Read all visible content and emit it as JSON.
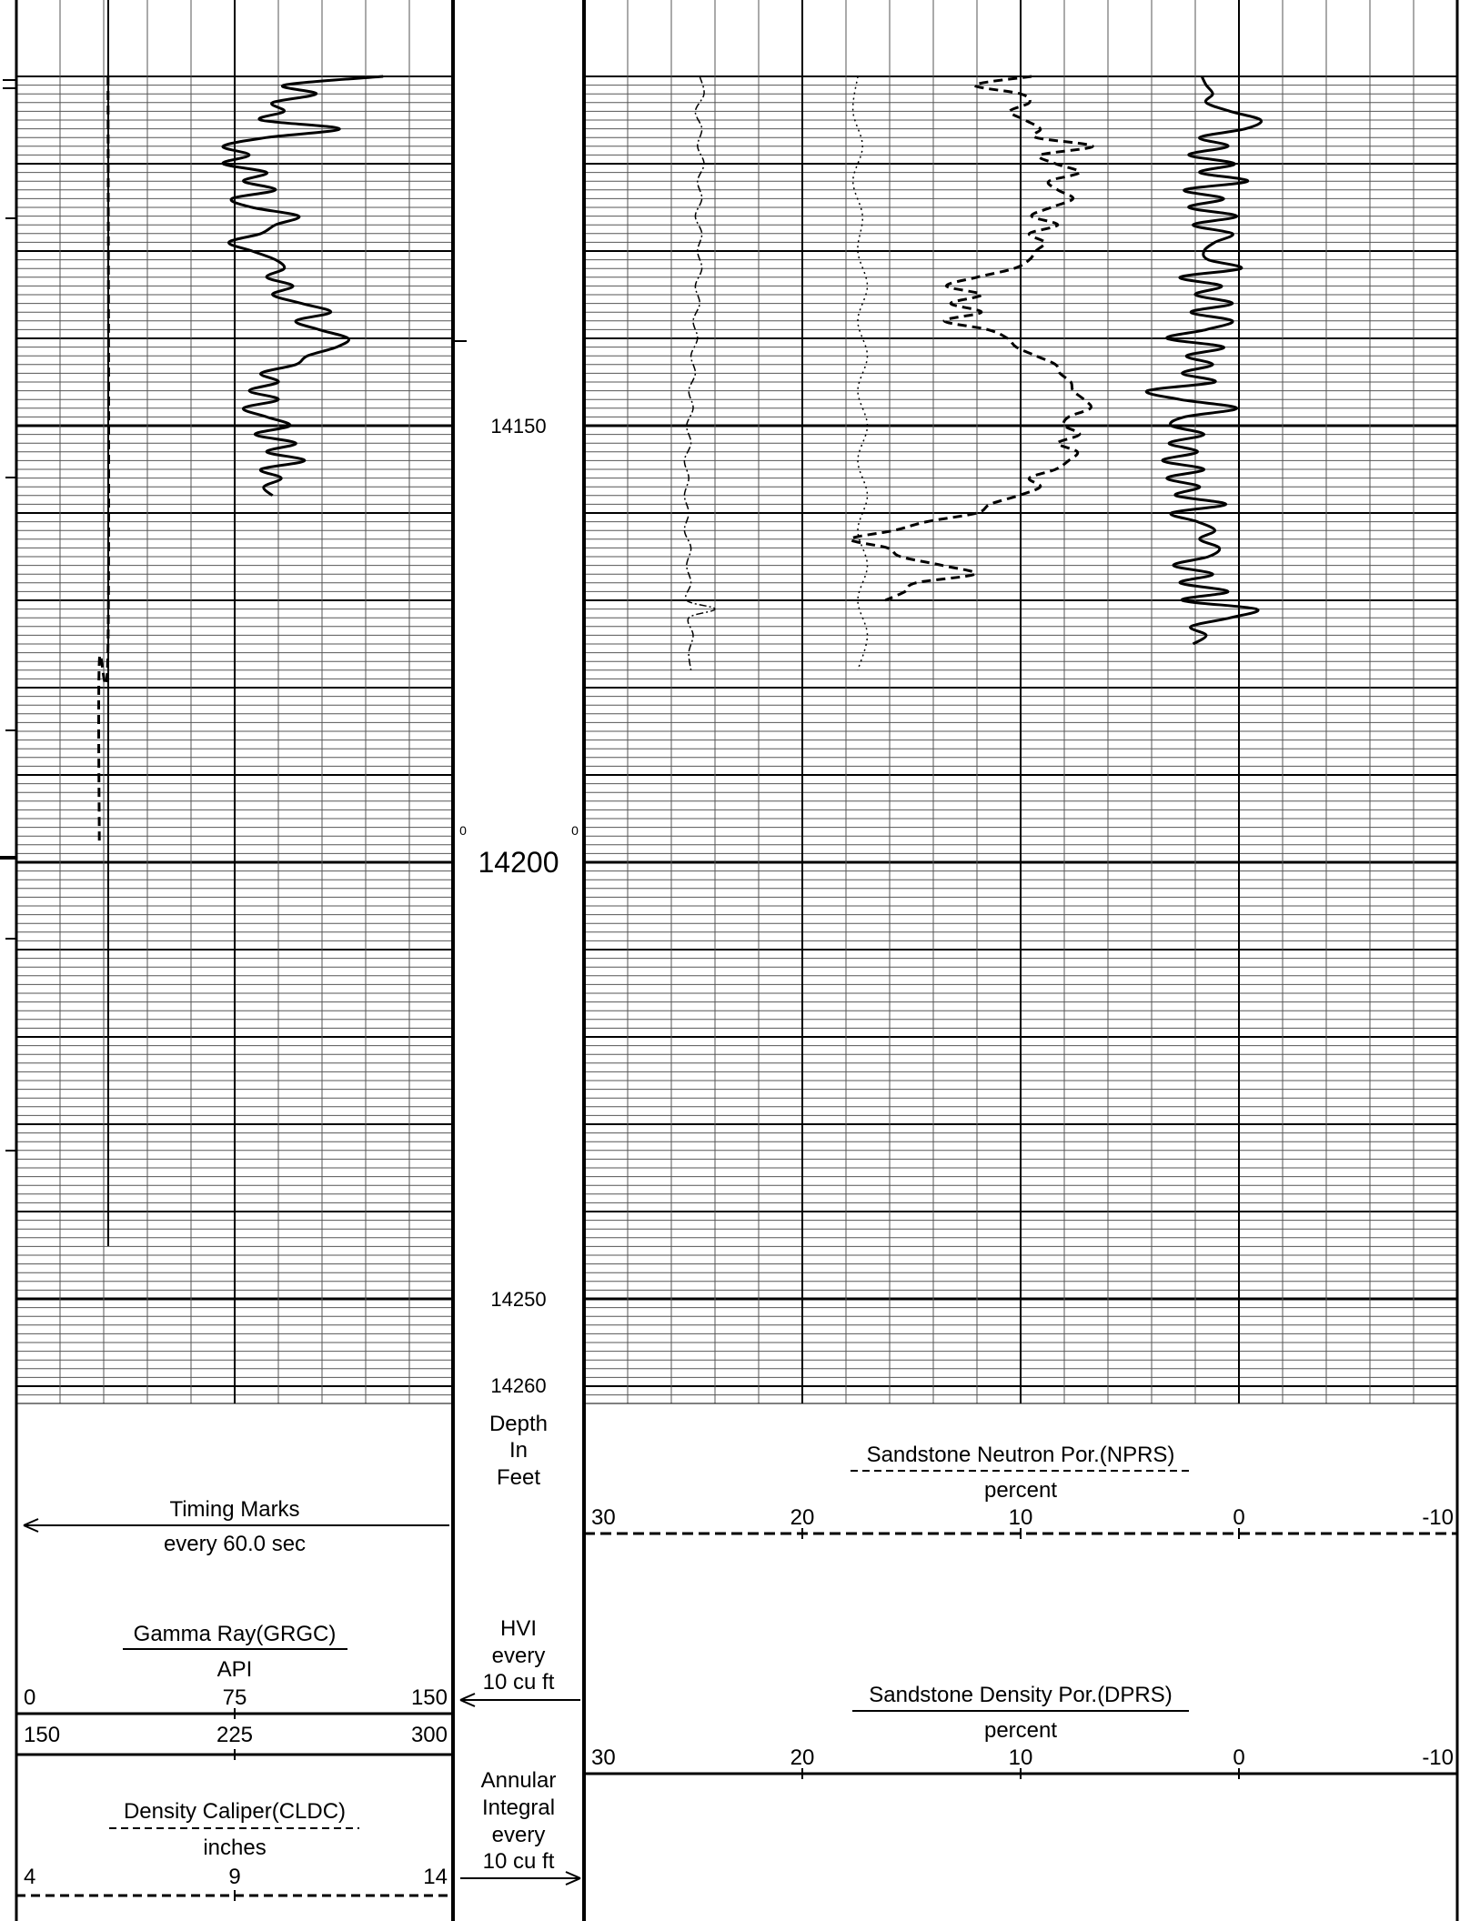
{
  "depth_labels": {
    "d14150": "14150",
    "d14200": "14200",
    "d14250": "14250",
    "d14260": "14260",
    "small_zero_left": "0",
    "small_zero_right": "0"
  },
  "depth_header": {
    "line1": "Depth",
    "line2": "In",
    "line3": "Feet"
  },
  "hvi": {
    "line1": "HVI",
    "line2": "every",
    "line3": "10 cu ft"
  },
  "annular": {
    "line1": "Annular",
    "line2": "Integral",
    "line3": "every",
    "line4": "10 cu ft"
  },
  "timing": {
    "title": "Timing Marks",
    "subtitle": "every 60.0 sec"
  },
  "gamma": {
    "title": "Gamma Ray(GRGC)",
    "unit": "API",
    "scale1": [
      "0",
      "75",
      "150"
    ],
    "scale2": [
      "150",
      "225",
      "300"
    ]
  },
  "caliper": {
    "title": "Density Caliper(CLDC)",
    "unit": "inches",
    "scale": [
      "4",
      "9",
      "14"
    ]
  },
  "neutron": {
    "title": "Sandstone Neutron Por.(NPRS)",
    "unit": "percent",
    "scale": [
      "30",
      "20",
      "10",
      "0",
      "-10"
    ]
  },
  "density": {
    "title": "Sandstone Density Por.(DPRS)",
    "unit": "percent",
    "scale": [
      "30",
      "20",
      "10",
      "0",
      "-10"
    ]
  },
  "chart_data": {
    "type": "line",
    "depth_unit": "ft",
    "depth_range": [
      14110,
      14270
    ],
    "tracks": [
      {
        "name": "Gamma Ray(GRGC)",
        "unit": "API",
        "xlim": [
          0,
          150
        ],
        "style": "solid",
        "points": [
          [
            14110,
            126
          ],
          [
            14111,
            92
          ],
          [
            14112,
            103
          ],
          [
            14113,
            88
          ],
          [
            14114,
            92
          ],
          [
            14115,
            84
          ],
          [
            14116,
            111
          ],
          [
            14117,
            86
          ],
          [
            14118,
            71
          ],
          [
            14119,
            80
          ],
          [
            14120,
            71
          ],
          [
            14121,
            86
          ],
          [
            14122,
            78
          ],
          [
            14123,
            89
          ],
          [
            14124,
            74
          ],
          [
            14125,
            81
          ],
          [
            14126,
            97
          ],
          [
            14127,
            89
          ],
          [
            14128,
            84
          ],
          [
            14129,
            73
          ],
          [
            14130,
            81
          ],
          [
            14131,
            89
          ],
          [
            14132,
            92
          ],
          [
            14133,
            86
          ],
          [
            14134,
            95
          ],
          [
            14135,
            88
          ],
          [
            14136,
            98
          ],
          [
            14137,
            108
          ],
          [
            14138,
            96
          ],
          [
            14139,
            104
          ],
          [
            14140,
            114
          ],
          [
            14141,
            110
          ],
          [
            14142,
            100
          ],
          [
            14143,
            96
          ],
          [
            14144,
            84
          ],
          [
            14145,
            90
          ],
          [
            14146,
            80
          ],
          [
            14147,
            90
          ],
          [
            14148,
            78
          ],
          [
            14149,
            86
          ],
          [
            14150,
            94
          ],
          [
            14151,
            82
          ],
          [
            14152,
            96
          ],
          [
            14153,
            86
          ],
          [
            14154,
            99
          ],
          [
            14155,
            84
          ],
          [
            14156,
            91
          ],
          [
            14157,
            85
          ],
          [
            14158,
            88
          ]
        ]
      },
      {
        "name": "Density Caliper(CLDC)",
        "unit": "inches",
        "xlim": [
          4,
          14
        ],
        "style": "dashed",
        "points": [
          [
            14110,
            6.1
          ],
          [
            14175,
            6.1
          ],
          [
            14177,
            5.9
          ],
          [
            14198,
            5.9
          ]
        ]
      },
      {
        "name": "Sandstone Neutron Por.(NPRS)",
        "unit": "percent",
        "xlim": [
          30,
          -10
        ],
        "style": "dashed",
        "points": [
          [
            14110,
            9.5
          ],
          [
            14111,
            12.1
          ],
          [
            14112,
            10.0
          ],
          [
            14113,
            9.6
          ],
          [
            14114,
            10.5
          ],
          [
            14115,
            9.8
          ],
          [
            14116,
            9.1
          ],
          [
            14117,
            9.3
          ],
          [
            14118,
            6.7
          ],
          [
            14119,
            9.1
          ],
          [
            14120,
            8.4
          ],
          [
            14121,
            7.3
          ],
          [
            14122,
            8.7
          ],
          [
            14123,
            8.3
          ],
          [
            14124,
            7.6
          ],
          [
            14125,
            8.6
          ],
          [
            14126,
            9.5
          ],
          [
            14127,
            8.3
          ],
          [
            14128,
            9.6
          ],
          [
            14129,
            8.9
          ],
          [
            14130,
            9.3
          ],
          [
            14131,
            9.6
          ],
          [
            14132,
            10.3
          ],
          [
            14133,
            12.0
          ],
          [
            14134,
            13.4
          ],
          [
            14135,
            11.8
          ],
          [
            14136,
            13.2
          ],
          [
            14137,
            11.8
          ],
          [
            14138,
            13.5
          ],
          [
            14139,
            11.5
          ],
          [
            14140,
            10.6
          ],
          [
            14141,
            10.2
          ],
          [
            14142,
            9.3
          ],
          [
            14143,
            8.4
          ],
          [
            14144,
            8.2
          ],
          [
            14145,
            7.7
          ],
          [
            14146,
            7.6
          ],
          [
            14147,
            7.1
          ],
          [
            14148,
            6.8
          ],
          [
            14149,
            7.8
          ],
          [
            14150,
            8.0
          ],
          [
            14151,
            7.3
          ],
          [
            14152,
            8.3
          ],
          [
            14153,
            7.4
          ],
          [
            14154,
            7.8
          ],
          [
            14155,
            8.4
          ],
          [
            14156,
            9.6
          ],
          [
            14157,
            9.1
          ],
          [
            14158,
            10.1
          ],
          [
            14159,
            11.4
          ],
          [
            14160,
            12.0
          ],
          [
            14161,
            14.3
          ],
          [
            14162,
            15.8
          ],
          [
            14163,
            17.8
          ],
          [
            14164,
            16.1
          ],
          [
            14165,
            15.5
          ],
          [
            14166,
            13.6
          ],
          [
            14167,
            12.1
          ],
          [
            14168,
            14.8
          ],
          [
            14169,
            15.3
          ],
          [
            14170,
            16.2
          ]
        ]
      },
      {
        "name": "Sandstone Density Por.(DPRS)",
        "unit": "percent",
        "xlim": [
          30,
          -10
        ],
        "style": "solid",
        "points": [
          [
            14110,
            1.7
          ],
          [
            14111,
            1.5
          ],
          [
            14112,
            1.2
          ],
          [
            14113,
            1.5
          ],
          [
            14114,
            0.4
          ],
          [
            14115,
            -1.0
          ],
          [
            14116,
            -0.3
          ],
          [
            14117,
            1.8
          ],
          [
            14118,
            0.5
          ],
          [
            14119,
            2.3
          ],
          [
            14120,
            0.2
          ],
          [
            14121,
            1.8
          ],
          [
            14122,
            -0.4
          ],
          [
            14123,
            2.5
          ],
          [
            14124,
            0.7
          ],
          [
            14125,
            2.3
          ],
          [
            14126,
            0.1
          ],
          [
            14127,
            2.1
          ],
          [
            14128,
            0.3
          ],
          [
            14129,
            1.1
          ],
          [
            14130,
            1.6
          ],
          [
            14131,
            1.4
          ],
          [
            14132,
            -0.1
          ],
          [
            14133,
            2.7
          ],
          [
            14134,
            0.8
          ],
          [
            14135,
            2.0
          ],
          [
            14136,
            0.3
          ],
          [
            14137,
            2.2
          ],
          [
            14138,
            0.3
          ],
          [
            14139,
            1.5
          ],
          [
            14140,
            3.3
          ],
          [
            14141,
            0.7
          ],
          [
            14142,
            2.4
          ],
          [
            14143,
            1.2
          ],
          [
            14144,
            2.6
          ],
          [
            14145,
            1.1
          ],
          [
            14146,
            4.2
          ],
          [
            14147,
            2.7
          ],
          [
            14148,
            0.1
          ],
          [
            14149,
            2.5
          ],
          [
            14150,
            3.1
          ],
          [
            14151,
            1.6
          ],
          [
            14152,
            3.2
          ],
          [
            14153,
            1.9
          ],
          [
            14154,
            3.5
          ],
          [
            14155,
            1.6
          ],
          [
            14156,
            3.3
          ],
          [
            14157,
            1.8
          ],
          [
            14158,
            2.9
          ],
          [
            14159,
            0.6
          ],
          [
            14160,
            3.1
          ],
          [
            14161,
            1.9
          ],
          [
            14162,
            1.1
          ],
          [
            14163,
            1.8
          ],
          [
            14164,
            0.9
          ],
          [
            14165,
            1.4
          ],
          [
            14166,
            3.0
          ],
          [
            14167,
            1.2
          ],
          [
            14168,
            2.7
          ],
          [
            14169,
            0.5
          ],
          [
            14170,
            2.6
          ],
          [
            14171,
            -0.8
          ],
          [
            14172,
            0.4
          ],
          [
            14173,
            2.2
          ],
          [
            14174,
            1.5
          ],
          [
            14175,
            2.1
          ]
        ]
      },
      {
        "name": "HVI",
        "unit": "",
        "xlim": [
          0,
          1
        ],
        "style": "dash-dot",
        "points": [
          [
            14110,
            0.53
          ],
          [
            14112,
            0.55
          ],
          [
            14114,
            0.51
          ],
          [
            14116,
            0.54
          ],
          [
            14118,
            0.52
          ],
          [
            14120,
            0.55
          ],
          [
            14122,
            0.52
          ],
          [
            14124,
            0.54
          ],
          [
            14126,
            0.51
          ],
          [
            14128,
            0.54
          ],
          [
            14130,
            0.52
          ],
          [
            14132,
            0.54
          ],
          [
            14134,
            0.51
          ],
          [
            14136,
            0.53
          ],
          [
            14138,
            0.5
          ],
          [
            14140,
            0.52
          ],
          [
            14142,
            0.49
          ],
          [
            14144,
            0.51
          ],
          [
            14146,
            0.48
          ],
          [
            14148,
            0.5
          ],
          [
            14150,
            0.47
          ],
          [
            14152,
            0.49
          ],
          [
            14154,
            0.46
          ],
          [
            14156,
            0.48
          ],
          [
            14158,
            0.46
          ],
          [
            14160,
            0.48
          ],
          [
            14162,
            0.46
          ],
          [
            14164,
            0.49
          ],
          [
            14166,
            0.47
          ],
          [
            14168,
            0.49
          ],
          [
            14170,
            0.47
          ],
          [
            14171,
            0.6
          ],
          [
            14172,
            0.48
          ],
          [
            14174,
            0.5
          ],
          [
            14176,
            0.48
          ],
          [
            14178,
            0.49
          ]
        ]
      },
      {
        "name": "Annular Integral",
        "unit": "",
        "xlim": [
          0,
          1
        ],
        "style": "dotted",
        "points": [
          [
            14110,
            0.57
          ],
          [
            14114,
            0.56
          ],
          [
            14118,
            0.58
          ],
          [
            14122,
            0.56
          ],
          [
            14126,
            0.58
          ],
          [
            14130,
            0.57
          ],
          [
            14134,
            0.59
          ],
          [
            14138,
            0.57
          ],
          [
            14142,
            0.59
          ],
          [
            14146,
            0.57
          ],
          [
            14150,
            0.59
          ],
          [
            14154,
            0.57
          ],
          [
            14158,
            0.59
          ],
          [
            14162,
            0.57
          ],
          [
            14166,
            0.59
          ],
          [
            14170,
            0.57
          ],
          [
            14174,
            0.59
          ],
          [
            14178,
            0.57
          ]
        ]
      }
    ]
  }
}
